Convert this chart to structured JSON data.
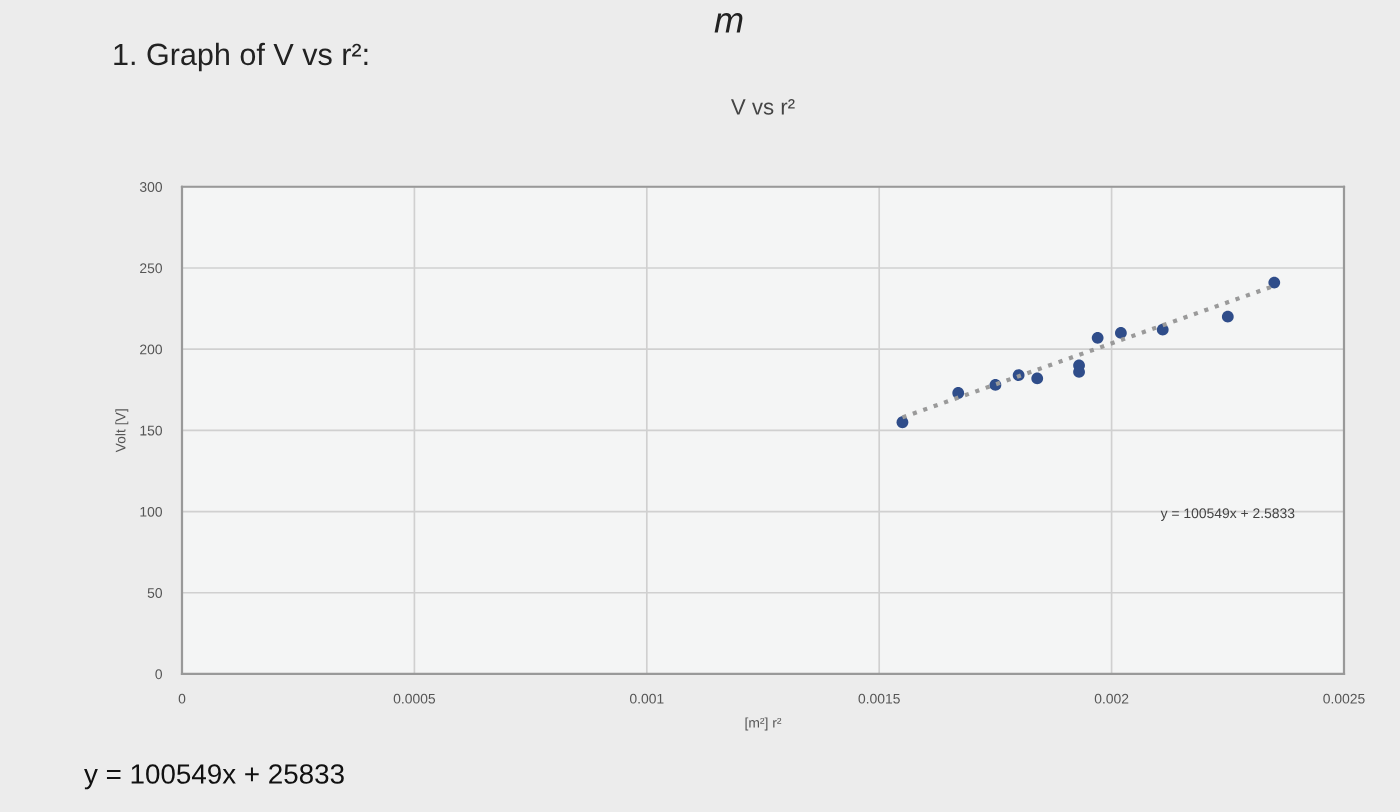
{
  "chart_data": {
    "type": "scatter",
    "title": "V vs r²",
    "xlabel": "[m²] r²",
    "ylabel": "Volt [V]",
    "annotations": [
      "1. Graph of V vs r²:",
      "y = 100549x + 2.5833",
      "y = 100549x + 25833",
      "m"
    ],
    "series": [
      {
        "color": "#2f4d8a",
        "x": [
          0.00155,
          0.00167,
          0.00175,
          0.0018,
          0.00184,
          0.00193,
          0.00193,
          0.00197,
          0.00202,
          0.00211,
          0.00225,
          0.00235
        ],
        "values": [
          155,
          173,
          178,
          184,
          182,
          190,
          186,
          207,
          210,
          212,
          220,
          241
        ],
        "marker": "circle"
      },
      {
        "type": "line",
        "color": "#9a9a9a",
        "x": [
          0.00155,
          0.00235
        ],
        "values": [
          158,
          239
        ],
        "line_style": "dotted"
      }
    ],
    "xlim": [
      0,
      0.0025
    ],
    "xticks": [
      0,
      0.0005,
      0.001,
      0.0015,
      0.002,
      0.0025
    ],
    "ylim": [
      0,
      300
    ],
    "yticks": [
      0,
      50,
      100,
      150,
      200,
      250,
      300
    ],
    "grid": true,
    "legend": false
  }
}
